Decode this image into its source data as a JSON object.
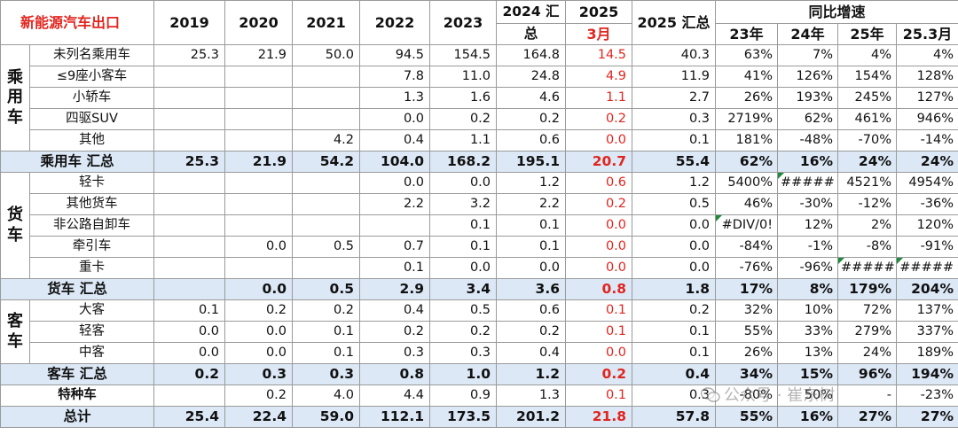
{
  "header": {
    "title": "新能源汽车出口",
    "years": [
      "2019",
      "2020",
      "2021",
      "2022",
      "2023"
    ],
    "y2024_line1": "2024 汇",
    "y2024_line2": "总",
    "y2025_line1": "2025",
    "y2025_line2": "3月",
    "y2025_total": "2025 汇总",
    "yoy": "同比增速",
    "yoy_cols": [
      "23年",
      "24年",
      "25年",
      "25.3月"
    ]
  },
  "groups": {
    "passenger": "乘\n用\n车",
    "truck": "货\n车",
    "bus": "客\n车"
  },
  "rows": {
    "p1": {
      "name": "未列名乘用车",
      "v": [
        "25.3",
        "21.9",
        "50.0",
        "94.5",
        "154.5",
        "164.8",
        "14.5",
        "40.3"
      ],
      "p": [
        "63%",
        "7%",
        "4%",
        "4%"
      ]
    },
    "p2": {
      "name": "≤9座小客车",
      "v": [
        "",
        "",
        "",
        "7.8",
        "11.0",
        "24.8",
        "4.9",
        "11.9"
      ],
      "p": [
        "41%",
        "126%",
        "154%",
        "128%"
      ]
    },
    "p3": {
      "name": "小轿车",
      "v": [
        "",
        "",
        "",
        "1.3",
        "1.6",
        "4.6",
        "1.1",
        "2.7"
      ],
      "p": [
        "26%",
        "193%",
        "245%",
        "127%"
      ]
    },
    "p4": {
      "name": "四驱SUV",
      "v": [
        "",
        "",
        "",
        "0.0",
        "0.2",
        "0.2",
        "0.2",
        "0.3"
      ],
      "p": [
        "2719%",
        "62%",
        "461%",
        "946%"
      ]
    },
    "p5": {
      "name": "其他",
      "v": [
        "",
        "",
        "4.2",
        "0.4",
        "1.1",
        "0.6",
        "0.0",
        "0.1"
      ],
      "p": [
        "181%",
        "-48%",
        "-70%",
        "-14%"
      ]
    },
    "psum": {
      "name": "乘用车 汇总",
      "v": [
        "25.3",
        "21.9",
        "54.2",
        "104.0",
        "168.2",
        "195.1",
        "20.7",
        "55.4"
      ],
      "p": [
        "62%",
        "16%",
        "24%",
        "24%"
      ]
    },
    "t1": {
      "name": "轻卡",
      "v": [
        "",
        "",
        "",
        "0.0",
        "0.0",
        "1.2",
        "0.6",
        "1.2"
      ],
      "p": [
        "5400%",
        "#####",
        "4521%",
        "4954%"
      ]
    },
    "t2": {
      "name": "其他货车",
      "v": [
        "",
        "",
        "",
        "2.2",
        "3.2",
        "2.2",
        "0.2",
        "0.5"
      ],
      "p": [
        "46%",
        "-30%",
        "-12%",
        "-36%"
      ]
    },
    "t3": {
      "name": "非公路自卸车",
      "v": [
        "",
        "",
        "",
        "",
        "0.1",
        "0.1",
        "0.0",
        "0.0"
      ],
      "p": [
        "#DIV/0!",
        "12%",
        "2%",
        "120%"
      ]
    },
    "t4": {
      "name": "牵引车",
      "v": [
        "",
        "0.0",
        "0.5",
        "0.7",
        "0.1",
        "0.1",
        "0.0",
        "0.0"
      ],
      "p": [
        "-84%",
        "-1%",
        "-8%",
        "-91%"
      ]
    },
    "t5": {
      "name": "重卡",
      "v": [
        "",
        "",
        "",
        "0.1",
        "0.0",
        "0.0",
        "0.0",
        "0.0"
      ],
      "p": [
        "-76%",
        "-96%",
        "#####",
        "#####"
      ]
    },
    "tsum": {
      "name": "货车 汇总",
      "v": [
        "",
        "0.0",
        "0.5",
        "2.9",
        "3.4",
        "3.6",
        "0.8",
        "1.8"
      ],
      "p": [
        "17%",
        "8%",
        "179%",
        "204%"
      ]
    },
    "b1": {
      "name": "大客",
      "v": [
        "0.1",
        "0.2",
        "0.2",
        "0.4",
        "0.5",
        "0.6",
        "0.1",
        "0.2"
      ],
      "p": [
        "32%",
        "10%",
        "72%",
        "137%"
      ]
    },
    "b2": {
      "name": "轻客",
      "v": [
        "0.0",
        "0.0",
        "0.1",
        "0.2",
        "0.2",
        "0.2",
        "0.1",
        "0.1"
      ],
      "p": [
        "55%",
        "33%",
        "279%",
        "337%"
      ]
    },
    "b3": {
      "name": "中客",
      "v": [
        "0.0",
        "0.0",
        "0.1",
        "0.3",
        "0.3",
        "0.4",
        "0.0",
        "0.1"
      ],
      "p": [
        "26%",
        "13%",
        "24%",
        "189%"
      ]
    },
    "bsum": {
      "name": "客车 汇总",
      "v": [
        "0.2",
        "0.3",
        "0.3",
        "0.8",
        "1.0",
        "1.2",
        "0.2",
        "0.4"
      ],
      "p": [
        "34%",
        "15%",
        "96%",
        "194%"
      ]
    },
    "sp": {
      "name": "特种车",
      "v": [
        "",
        "0.2",
        "4.0",
        "4.4",
        "0.9",
        "1.3",
        "0.1",
        "0.3"
      ],
      "p": [
        "-80%",
        "50%",
        "-",
        "-23%"
      ]
    },
    "total": {
      "name": "总计",
      "v": [
        "25.4",
        "22.4",
        "59.0",
        "112.1",
        "173.5",
        "201.2",
        "21.8",
        "57.8"
      ],
      "p": [
        "55%",
        "16%",
        "27%",
        "27%"
      ]
    }
  },
  "watermark": "公众号 · 崔东树",
  "colors": {
    "accent_red": "#e0261f",
    "summary_bg": "#dce8f6",
    "error_flag": "#1f8a3a"
  }
}
